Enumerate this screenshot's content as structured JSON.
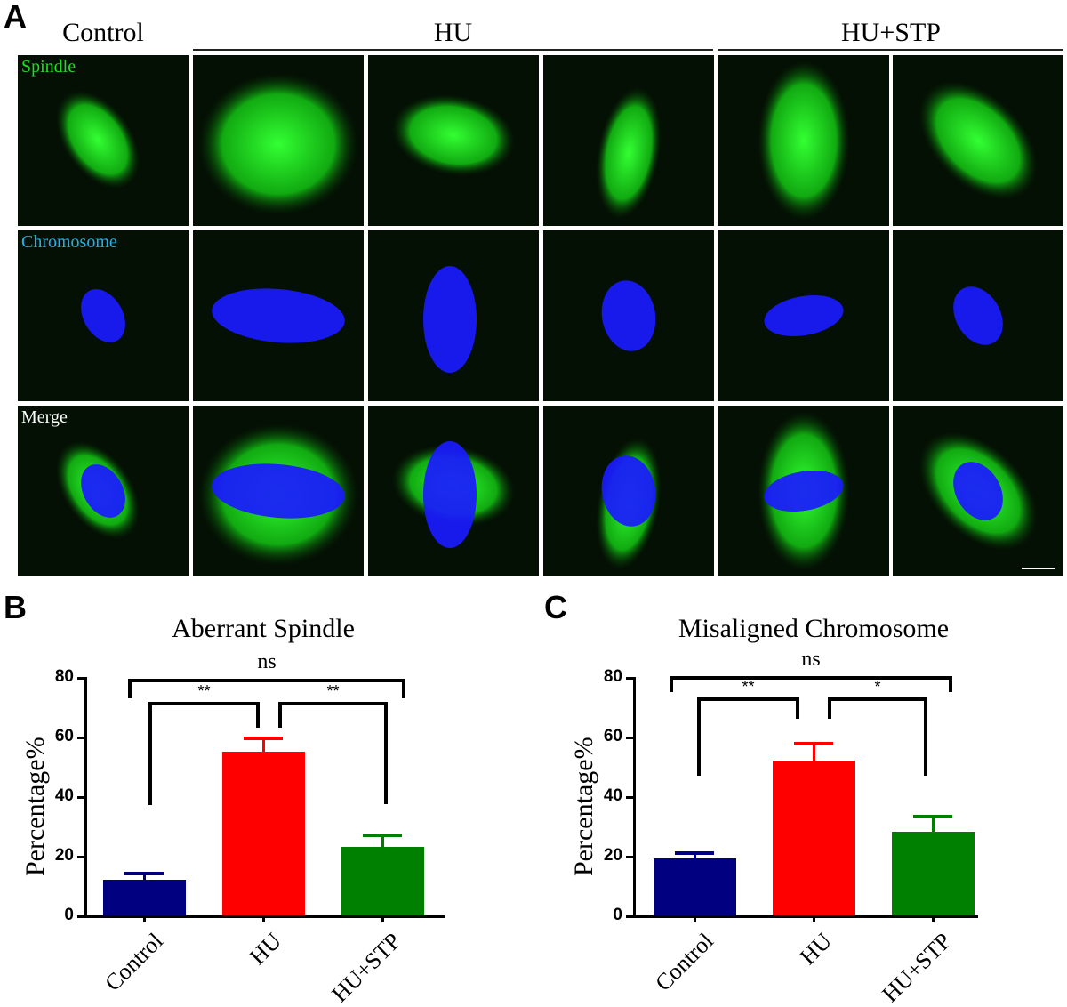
{
  "figure": {
    "panel_a": {
      "letter": "A",
      "columns": {
        "control": "Control",
        "hu": "HU",
        "hu_stp": "HU+STP"
      },
      "rows": [
        {
          "label": "Spindle",
          "color": "#22dd22"
        },
        {
          "label": "Chromosome",
          "color": "#1ab2e8"
        },
        {
          "label": "Merge",
          "color": "#ffffff"
        }
      ]
    },
    "panel_b": {
      "letter": "B"
    },
    "panel_c": {
      "letter": "C"
    }
  },
  "chart_data": [
    {
      "type": "bar",
      "title": "Aberrant Spindle",
      "xlabel": "",
      "ylabel": "Percentage%",
      "ylim": [
        0,
        80
      ],
      "yticks": [
        0,
        20,
        40,
        60,
        80
      ],
      "categories": [
        "Control",
        "HU",
        "HU+STP"
      ],
      "values": [
        12,
        55,
        23
      ],
      "error_upper": [
        14,
        59.5,
        27
      ],
      "colors": [
        "#000080",
        "#ff0000",
        "#008000"
      ],
      "annotations": [
        {
          "groups": [
            "Control",
            "HU+STP"
          ],
          "label": "ns"
        },
        {
          "groups": [
            "Control",
            "HU"
          ],
          "label": "**"
        },
        {
          "groups": [
            "HU",
            "HU+STP"
          ],
          "label": "**"
        }
      ]
    },
    {
      "type": "bar",
      "title": "Misaligned Chromosome",
      "xlabel": "",
      "ylabel": "Percentage%",
      "ylim": [
        0,
        80
      ],
      "yticks": [
        0,
        20,
        40,
        60,
        80
      ],
      "categories": [
        "Control",
        "HU",
        "HU+STP"
      ],
      "values": [
        19,
        52,
        28
      ],
      "error_upper": [
        21,
        57.5,
        33
      ],
      "colors": [
        "#000080",
        "#ff0000",
        "#008000"
      ],
      "annotations": [
        {
          "groups": [
            "Control",
            "HU+STP"
          ],
          "label": "ns"
        },
        {
          "groups": [
            "Control",
            "HU"
          ],
          "label": "**"
        },
        {
          "groups": [
            "HU",
            "HU+STP"
          ],
          "label": "*"
        }
      ]
    }
  ]
}
